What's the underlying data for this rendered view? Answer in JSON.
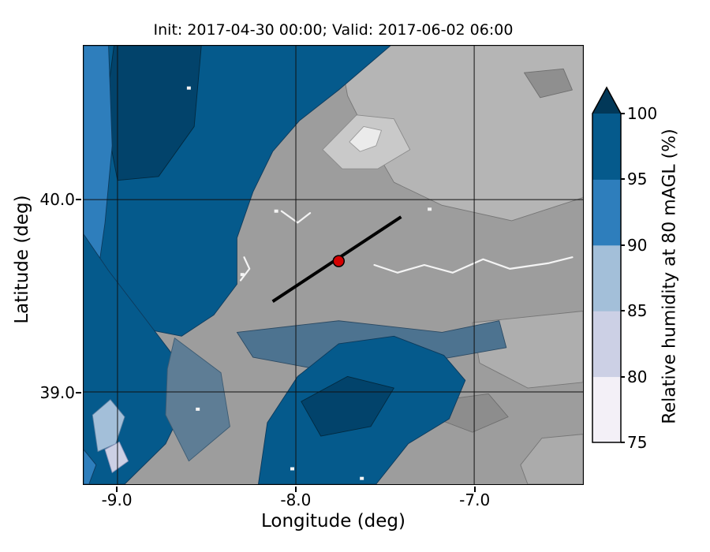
{
  "chart_data": {
    "type": "heatmap",
    "title": "Init: 2017-04-30 00:00; Valid: 2017-06-02 06:00",
    "xlabel": "Longitude (deg)",
    "ylabel": "Latitude (deg)",
    "xlim": [
      -9.19,
      -6.39
    ],
    "ylim": [
      38.52,
      40.8
    ],
    "xticks": [
      {
        "value": -9.0,
        "label": "-9.0"
      },
      {
        "value": -8.0,
        "label": "-8.0"
      },
      {
        "value": -7.0,
        "label": "-7.0"
      }
    ],
    "yticks": [
      {
        "value": 40.0,
        "label": "40.0"
      },
      {
        "value": 39.0,
        "label": "39.0"
      }
    ],
    "gridlines": {
      "x": [
        -9.0,
        -8.0,
        -7.0
      ],
      "y": [
        39.0,
        40.0
      ]
    },
    "background_color": "#9d9d9d",
    "river_color": "#f4f4f4",
    "colorbar": {
      "label": "Relative humidity at 80 mAGL (%)",
      "levels": [
        75,
        80,
        85,
        90,
        95,
        100
      ],
      "colors": [
        "#f3f0f7",
        "#ccd0e5",
        "#a3bfd9",
        "#2e7ebc",
        "#055a8c"
      ],
      "extend_color": "#023858",
      "extend": "max"
    },
    "cross_section_line": {
      "from": [
        -8.13,
        39.47
      ],
      "to": [
        -7.41,
        39.91
      ],
      "color": "#000000",
      "width": 4
    },
    "marker": {
      "lon": -7.76,
      "lat": 39.68,
      "color": "#d40000",
      "edge": "#000000",
      "size": 7
    },
    "regions": [
      {
        "name": "terrain-light-northeast",
        "color": "#b5b5b5",
        "stroke": "#767676",
        "points": [
          [
            -7.76,
            40.8
          ],
          [
            -6.39,
            40.8
          ],
          [
            -6.39,
            40.01
          ],
          [
            -6.79,
            39.89
          ],
          [
            -7.18,
            39.97
          ],
          [
            -7.45,
            40.09
          ],
          [
            -7.58,
            40.3
          ],
          [
            -7.71,
            40.54
          ]
        ]
      },
      {
        "name": "terrain-lighter-core",
        "color": "#c9c9c9",
        "stroke": "#8a8a8a",
        "points": [
          [
            -7.85,
            40.26
          ],
          [
            -7.66,
            40.44
          ],
          [
            -7.45,
            40.42
          ],
          [
            -7.36,
            40.26
          ],
          [
            -7.54,
            40.16
          ],
          [
            -7.74,
            40.16
          ]
        ]
      },
      {
        "name": "terrain-white-peak",
        "color": "#ebebeb",
        "stroke": "#9a9a9a",
        "points": [
          [
            -7.7,
            40.3
          ],
          [
            -7.62,
            40.38
          ],
          [
            -7.52,
            40.36
          ],
          [
            -7.55,
            40.28
          ],
          [
            -7.64,
            40.25
          ]
        ]
      },
      {
        "name": "terrain-light-east",
        "color": "#aeaeae",
        "stroke": "#767676",
        "points": [
          [
            -7.01,
            39.36
          ],
          [
            -6.39,
            39.42
          ],
          [
            -6.39,
            39.05
          ],
          [
            -6.7,
            39.02
          ],
          [
            -6.97,
            39.15
          ]
        ]
      },
      {
        "name": "terrain-light-southeast",
        "color": "#ababab",
        "stroke": "#767676",
        "points": [
          [
            -6.62,
            38.76
          ],
          [
            -6.39,
            38.78
          ],
          [
            -6.39,
            38.52
          ],
          [
            -6.7,
            38.52
          ],
          [
            -6.74,
            38.62
          ]
        ]
      },
      {
        "name": "terrain-dark-south",
        "color": "#8d8d8d",
        "stroke": "#6e6e6e",
        "points": [
          [
            -7.16,
            38.96
          ],
          [
            -6.92,
            38.99
          ],
          [
            -6.81,
            38.87
          ],
          [
            -7.01,
            38.79
          ],
          [
            -7.18,
            38.85
          ]
        ]
      },
      {
        "name": "terrain-dark-northeast",
        "color": "#8f8f8f",
        "stroke": "#6e6e6e",
        "points": [
          [
            -6.72,
            40.66
          ],
          [
            -6.5,
            40.68
          ],
          [
            -6.45,
            40.57
          ],
          [
            -6.63,
            40.53
          ]
        ]
      },
      {
        "name": "humid-band-center",
        "color": "#4d7390",
        "stroke": "#2c4a63",
        "points": [
          [
            -8.33,
            39.31
          ],
          [
            -7.76,
            39.37
          ],
          [
            -7.18,
            39.31
          ],
          [
            -6.86,
            39.37
          ],
          [
            -6.82,
            39.23
          ],
          [
            -7.31,
            39.15
          ],
          [
            -7.89,
            39.12
          ],
          [
            -8.24,
            39.18
          ]
        ]
      },
      {
        "name": "humid-dark-northwest",
        "color": "#055a8c",
        "stroke": "#0d3a5c",
        "points": [
          [
            -9.19,
            40.8
          ],
          [
            -7.47,
            40.8
          ],
          [
            -7.76,
            40.57
          ],
          [
            -7.98,
            40.41
          ],
          [
            -8.13,
            40.25
          ],
          [
            -8.24,
            40.04
          ],
          [
            -8.33,
            39.8
          ],
          [
            -8.33,
            39.56
          ],
          [
            -8.46,
            39.4
          ],
          [
            -8.64,
            39.29
          ],
          [
            -8.86,
            39.33
          ],
          [
            -9.03,
            39.49
          ],
          [
            -9.13,
            39.69
          ],
          [
            -9.19,
            39.82
          ]
        ]
      },
      {
        "name": "humid-navy-northwest",
        "color": "#02436b",
        "stroke": "#02293f",
        "points": [
          [
            -9.02,
            40.8
          ],
          [
            -8.53,
            40.8
          ],
          [
            -8.57,
            40.38
          ],
          [
            -8.77,
            40.12
          ],
          [
            -9.0,
            40.1
          ],
          [
            -9.07,
            40.44
          ]
        ]
      },
      {
        "name": "humid-mid-west-strip",
        "color": "#2e7ebc",
        "stroke": "#0d3a5c",
        "points": [
          [
            -9.19,
            40.8
          ],
          [
            -9.05,
            40.8
          ],
          [
            -9.03,
            40.28
          ],
          [
            -9.07,
            39.88
          ],
          [
            -9.12,
            39.55
          ],
          [
            -9.19,
            39.46
          ]
        ]
      },
      {
        "name": "humid-dark-southwest",
        "color": "#055a8c",
        "stroke": "#0d3a5c",
        "points": [
          [
            -9.19,
            39.82
          ],
          [
            -9.05,
            39.63
          ],
          [
            -8.86,
            39.4
          ],
          [
            -8.68,
            39.18
          ],
          [
            -8.6,
            38.98
          ],
          [
            -8.73,
            38.73
          ],
          [
            -8.96,
            38.52
          ],
          [
            -9.19,
            38.52
          ]
        ]
      },
      {
        "name": "humid-steel-southwest",
        "color": "#5e7d95",
        "stroke": "#3c5b73",
        "points": [
          [
            -8.68,
            39.28
          ],
          [
            -8.42,
            39.1
          ],
          [
            -8.37,
            38.82
          ],
          [
            -8.6,
            38.64
          ],
          [
            -8.73,
            38.88
          ],
          [
            -8.72,
            39.12
          ]
        ]
      },
      {
        "name": "humid-dark-south",
        "color": "#055a8c",
        "stroke": "#0d3a5c",
        "points": [
          [
            -8.21,
            38.52
          ],
          [
            -8.16,
            38.84
          ],
          [
            -7.99,
            39.08
          ],
          [
            -7.76,
            39.25
          ],
          [
            -7.45,
            39.29
          ],
          [
            -7.17,
            39.19
          ],
          [
            -7.05,
            39.06
          ],
          [
            -7.14,
            38.86
          ],
          [
            -7.37,
            38.73
          ],
          [
            -7.55,
            38.52
          ]
        ]
      },
      {
        "name": "humid-navy-south",
        "color": "#02436b",
        "stroke": "#02293f",
        "points": [
          [
            -7.97,
            38.95
          ],
          [
            -7.71,
            39.08
          ],
          [
            -7.45,
            39.02
          ],
          [
            -7.58,
            38.82
          ],
          [
            -7.86,
            38.77
          ]
        ]
      },
      {
        "name": "humid-lightblue-southwest",
        "color": "#a3bfd9",
        "stroke": "#5d7fa0",
        "points": [
          [
            -9.14,
            38.88
          ],
          [
            -9.04,
            38.96
          ],
          [
            -8.96,
            38.87
          ],
          [
            -9.01,
            38.73
          ],
          [
            -9.11,
            38.69
          ]
        ]
      },
      {
        "name": "humid-paleblue-southwest",
        "color": "#ccd0e5",
        "stroke": "#8a93b8",
        "points": [
          [
            -9.07,
            38.7
          ],
          [
            -8.99,
            38.74
          ],
          [
            -8.94,
            38.64
          ],
          [
            -9.03,
            38.58
          ]
        ]
      },
      {
        "name": "humid-mid-southwest-corner",
        "color": "#2e7ebc",
        "stroke": "#0d3a5c",
        "points": [
          [
            -9.19,
            38.7
          ],
          [
            -9.12,
            38.62
          ],
          [
            -9.16,
            38.52
          ],
          [
            -9.19,
            38.52
          ]
        ]
      }
    ],
    "rivers": [
      [
        [
          -7.56,
          39.66
        ],
        [
          -7.43,
          39.62
        ],
        [
          -7.28,
          39.66
        ],
        [
          -7.12,
          39.62
        ],
        [
          -6.95,
          39.69
        ],
        [
          -6.8,
          39.64
        ],
        [
          -6.58,
          39.67
        ],
        [
          -6.45,
          39.7
        ]
      ],
      [
        [
          -8.08,
          39.94
        ],
        [
          -7.99,
          39.88
        ],
        [
          -7.92,
          39.93
        ]
      ],
      [
        [
          -8.31,
          39.58
        ],
        [
          -8.26,
          39.64
        ],
        [
          -8.29,
          39.7
        ]
      ]
    ],
    "white_spots": [
      [
        -7.25,
        39.95
      ],
      [
        -8.11,
        39.94
      ],
      [
        -8.3,
        39.61
      ],
      [
        -8.6,
        40.58
      ],
      [
        -8.55,
        38.91
      ],
      [
        -7.63,
        38.55
      ],
      [
        -8.02,
        38.6
      ]
    ]
  }
}
